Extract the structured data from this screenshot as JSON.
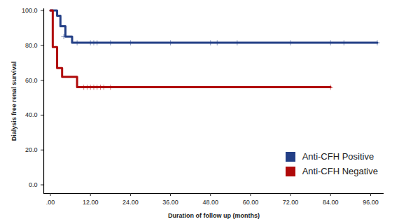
{
  "chart_data": {
    "type": "line",
    "line_style": "step",
    "marker": "plus",
    "legend": "bottom-right",
    "x_label": "Duration of follow up (months)",
    "y_label": "Dialysis free renal survival",
    "xlim": [
      -2,
      100
    ],
    "xticks": [
      {
        "value": 0,
        "label": ".00"
      },
      {
        "value": 12,
        "label": "12.00"
      },
      {
        "value": 24,
        "label": "24.00"
      },
      {
        "value": 36,
        "label": "36.00"
      },
      {
        "value": 48,
        "label": "48.00"
      },
      {
        "value": 60,
        "label": "60.00"
      },
      {
        "value": 72,
        "label": "72.00"
      },
      {
        "value": 84,
        "label": "84.00"
      },
      {
        "value": 96,
        "label": "96.00"
      }
    ],
    "ylim": [
      -5,
      101
    ],
    "yticks": [
      {
        "value": 0,
        "label": "0.0"
      },
      {
        "value": 20,
        "label": "20.0"
      },
      {
        "value": 40,
        "label": "40.0"
      },
      {
        "value": 60,
        "label": "60.0"
      },
      {
        "value": 80,
        "label": "80.0"
      },
      {
        "value": 100,
        "label": "100.0"
      }
    ],
    "series": [
      {
        "name": "Anti-CFH Positive",
        "color": "#233f86",
        "x": [
          0,
          2,
          3,
          4.5,
          6.5,
          98
        ],
        "values": [
          100,
          97,
          91,
          85,
          81.5,
          81.5
        ],
        "censored": {
          "x": [
            4,
            8,
            12,
            13,
            14,
            18,
            24,
            36,
            48,
            50,
            56,
            72,
            84,
            88,
            98
          ],
          "values": [
            85,
            81.5,
            81.5,
            81.5,
            81.5,
            81.5,
            81.5,
            81.5,
            81.5,
            81.5,
            81.5,
            81.5,
            81.5,
            81.5,
            81.5
          ]
        }
      },
      {
        "name": "Anti-CFH Negative",
        "color": "#b00a0a",
        "x": [
          0,
          0.7,
          2,
          3.5,
          8,
          84
        ],
        "values": [
          100,
          79,
          67,
          62,
          56,
          56
        ],
        "censored": {
          "x": [
            10,
            11,
            12,
            13,
            14,
            15,
            16,
            18,
            84
          ],
          "values": [
            56,
            56,
            56,
            56,
            56,
            56,
            56,
            56,
            56
          ]
        }
      }
    ]
  }
}
